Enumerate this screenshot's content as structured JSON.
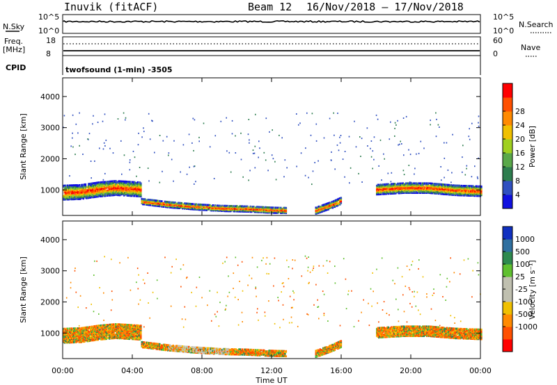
{
  "header": {
    "station": "Inuvik (fitACF)",
    "beam": "Beam 12",
    "date_range": "16/Nov/2018 – 17/Nov/2018"
  },
  "top_panels": {
    "nsky_label": "N.Sky",
    "nsky_top": "10^5",
    "nsky_bottom": "10^0",
    "nsearch_top": "10^5",
    "nsearch_bottom": "10^0",
    "nsearch_label": "N.Search",
    "freq_label": "Freq.",
    "freq_unit": "[MHz]",
    "freq_top": "18",
    "freq_bottom": "8",
    "nave_top": "60",
    "nave_bottom": "0",
    "nave_label": "Nave",
    "cpid_label": "CPID",
    "cpid_value": "twofsound (1-min) -3505"
  },
  "colors": {
    "power": [
      "#1010e0",
      "#3050c0",
      "#2e7d4f",
      "#5aa84a",
      "#a0d020",
      "#f0c000",
      "#ff8a00",
      "#ff5000",
      "#ff0000"
    ],
    "velocity": [
      "#ff0000",
      "#ff5000",
      "#ff8a00",
      "#f0c000",
      "#c0c0b0",
      "#c0c0b0",
      "#60c030",
      "#2e8a4f",
      "#3070a0",
      "#1030c0"
    ]
  },
  "chart_data": [
    {
      "type": "heatmap",
      "name": "power",
      "xlabel": "",
      "ylabel": "Slant Range [km]",
      "x_ticks": [
        "00:00",
        "04:00",
        "08:00",
        "12:00",
        "16:00",
        "20:00",
        "00:00"
      ],
      "x_range_hours": [
        0,
        24
      ],
      "y_ticks": [
        1000,
        2000,
        3000,
        4000
      ],
      "ylim": [
        180,
        4600
      ],
      "colorbar_label": "Power [dB]",
      "colorbar_ticks": [
        "4",
        "8",
        "12",
        "16",
        "20",
        "24",
        "28"
      ],
      "bands": [
        {
          "hours": [
            0.0,
            1.0,
            2.0,
            3.0,
            4.5
          ],
          "center_km": [
            900,
            920,
            1000,
            1050,
            1000
          ],
          "width_km": 450
        },
        {
          "hours": [
            4.5,
            6.0,
            7.5,
            9.0,
            10.5,
            12.0,
            12.8
          ],
          "center_km": [
            620,
            520,
            450,
            400,
            380,
            340,
            330
          ],
          "width_km": 180
        },
        {
          "hours": [
            14.5,
            15.5,
            16.0
          ],
          "center_km": [
            320,
            520,
            650
          ],
          "width_km": 200
        },
        {
          "hours": [
            18.0,
            19.5,
            21.0,
            22.5,
            24.0
          ],
          "center_km": [
            1000,
            1050,
            1050,
            980,
            950
          ],
          "width_km": 320
        }
      ],
      "scatter_range_km": [
        1200,
        3500
      ]
    },
    {
      "type": "heatmap",
      "name": "velocity",
      "xlabel": "Time UT",
      "ylabel": "Slant Range [km]",
      "x_ticks": [
        "00:00",
        "04:00",
        "08:00",
        "12:00",
        "16:00",
        "20:00",
        "00:00"
      ],
      "x_range_hours": [
        0,
        24
      ],
      "y_ticks": [
        1000,
        2000,
        3000,
        4000
      ],
      "ylim": [
        180,
        4600
      ],
      "colorbar_label": "Velocity [m s⁻¹]",
      "colorbar_ticks": [
        "1000",
        "500",
        "100",
        "25",
        "-25",
        "-100",
        "-500",
        "-1000"
      ],
      "bands": [
        {
          "hours": [
            0.0,
            1.0,
            2.0,
            3.0,
            4.5
          ],
          "center_km": [
            900,
            920,
            1000,
            1050,
            1000
          ],
          "width_km": 450
        },
        {
          "hours": [
            4.5,
            6.0,
            7.5,
            9.0,
            10.5,
            12.0,
            12.8
          ],
          "center_km": [
            620,
            520,
            450,
            400,
            380,
            340,
            330
          ],
          "width_km": 180
        },
        {
          "hours": [
            14.5,
            15.5,
            16.0
          ],
          "center_km": [
            320,
            520,
            650
          ],
          "width_km": 200
        },
        {
          "hours": [
            18.0,
            19.5,
            21.0,
            22.5,
            24.0
          ],
          "center_km": [
            1000,
            1050,
            1050,
            980,
            950
          ],
          "width_km": 320
        }
      ],
      "ground_scatter_hours": [
        6.0,
        9.5
      ]
    }
  ]
}
